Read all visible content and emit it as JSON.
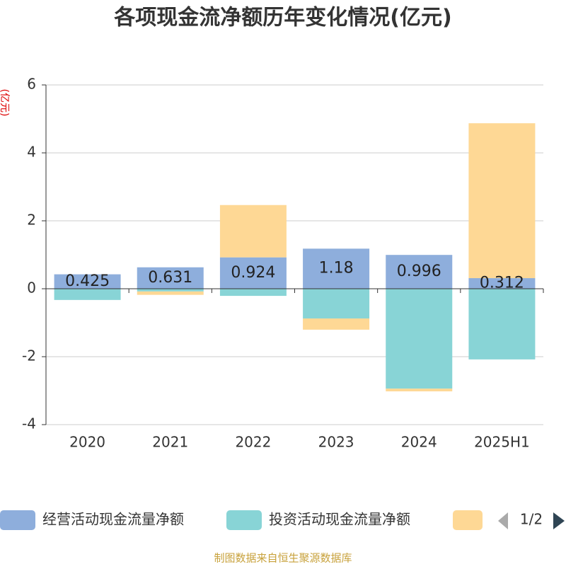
{
  "chart_data": {
    "type": "bar",
    "stacked": true,
    "title": "各项现金流净额历年变化情况(亿元)",
    "y_label": "(亿元)",
    "categories": [
      "2020",
      "2021",
      "2022",
      "2023",
      "2024",
      "2025H1"
    ],
    "series": [
      {
        "name": "经营活动现金流量净额",
        "color": "#8eaedc",
        "values": [
          0.425,
          0.631,
          0.924,
          1.18,
          0.996,
          0.312
        ]
      },
      {
        "name": "投资活动现金流量净额",
        "color": "#88d4d6",
        "values": [
          -0.33,
          -0.08,
          -0.21,
          -0.875,
          -2.94,
          -2.08
        ]
      },
      {
        "color": "#fed895",
        "values": [
          0,
          -0.1,
          1.54,
          -0.33,
          -0.08,
          4.56
        ]
      }
    ],
    "ylim": [
      -4,
      6
    ],
    "yticks": [
      -4,
      -2,
      0,
      2,
      4,
      6
    ],
    "grid": true,
    "legend_page": "1/2",
    "footer": "制图数据来自恒生聚源数据库"
  }
}
